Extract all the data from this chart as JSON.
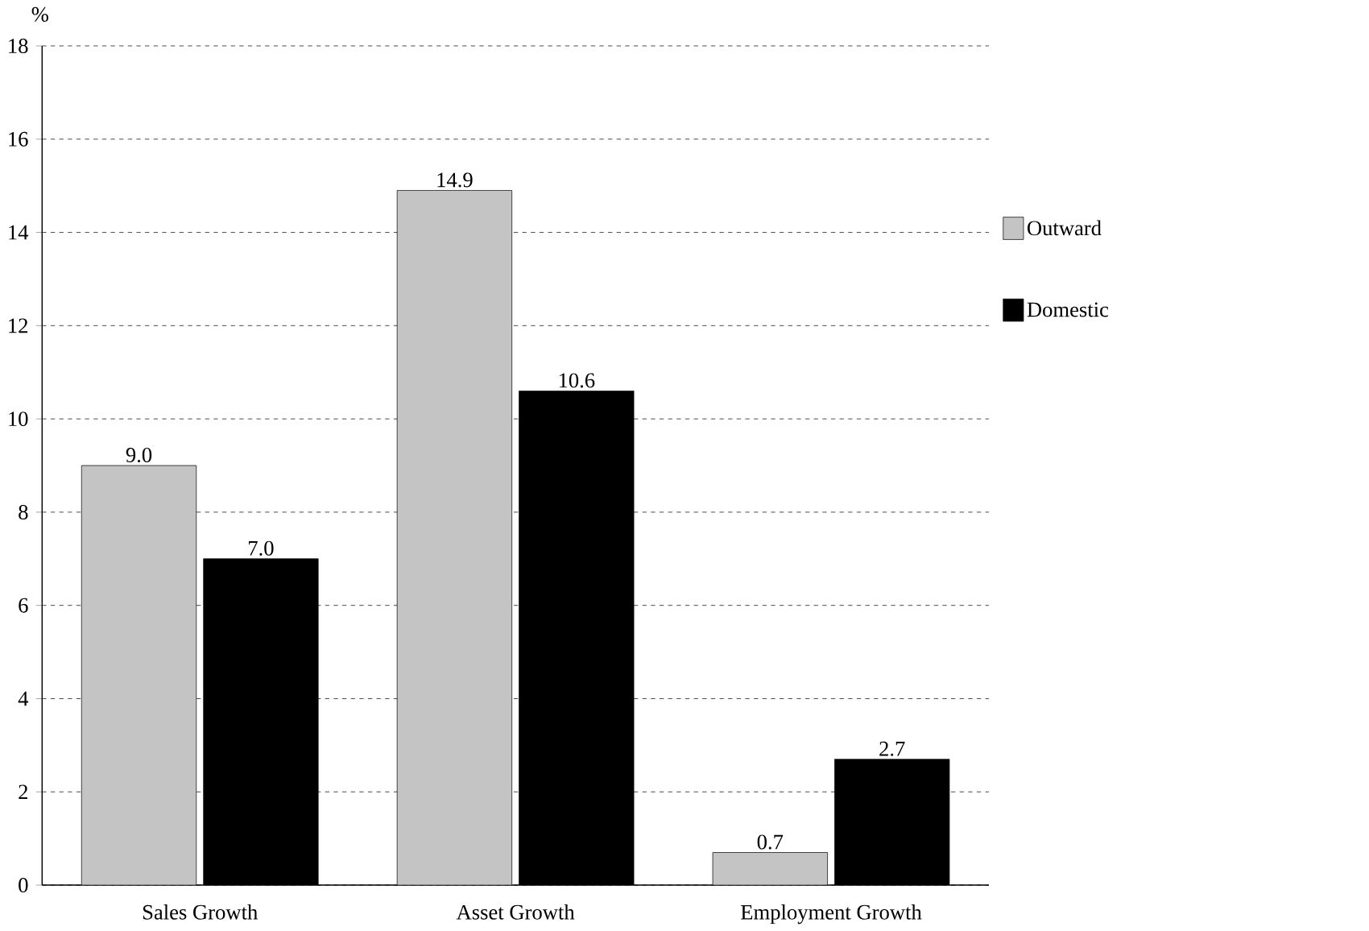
{
  "chart_data": {
    "type": "bar",
    "ylabel": "%",
    "categories": [
      "Sales Growth",
      "Asset Growth",
      "Employment Growth"
    ],
    "series": [
      {
        "name": "Outward",
        "color": "#c4c4c4",
        "values": [
          9.0,
          14.9,
          0.7
        ],
        "value_labels": [
          "9.0",
          "14.9",
          "0.7"
        ]
      },
      {
        "name": "Domestic",
        "color": "#000000",
        "values": [
          7.0,
          10.6,
          2.7
        ],
        "value_labels": [
          "7.0",
          "10.6",
          "2.7"
        ]
      }
    ],
    "ylim": [
      0,
      18
    ],
    "yticks": [
      0,
      2,
      4,
      6,
      8,
      10,
      12,
      14,
      16,
      18
    ],
    "grid": "y",
    "legend": "right"
  }
}
